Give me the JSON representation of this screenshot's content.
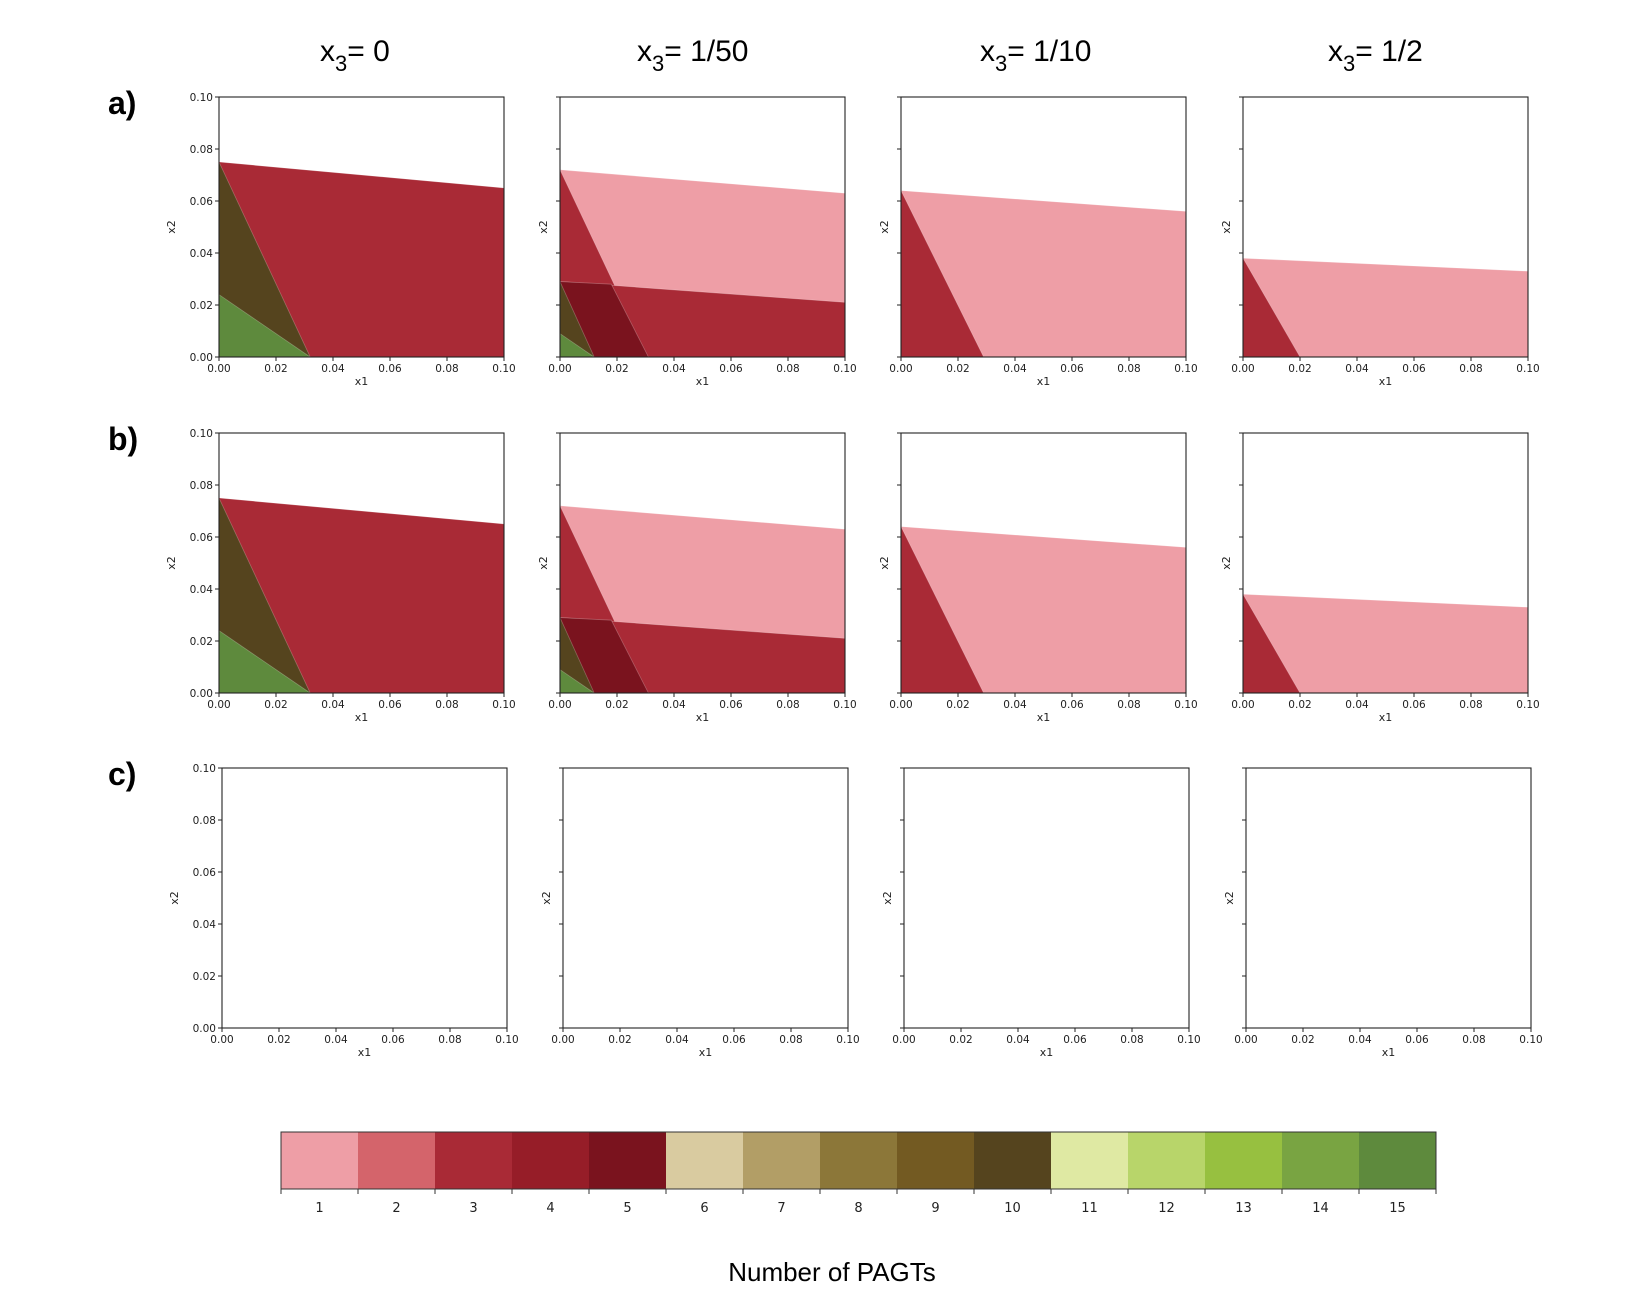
{
  "column_titles": [
    {
      "base": "x",
      "sub": "3",
      "rest": "= 0"
    },
    {
      "base": "x",
      "sub": "3",
      "rest": "= 1/50"
    },
    {
      "base": "x",
      "sub": "3",
      "rest": "= 1/10"
    },
    {
      "base": "x",
      "sub": "3",
      "rest": "= 1/2"
    }
  ],
  "row_labels": [
    "a)",
    "b)",
    "c)"
  ],
  "colorbar": {
    "label": "Number of PAGTs",
    "ticks": [
      "1",
      "2",
      "3",
      "4",
      "5",
      "6",
      "7",
      "8",
      "9",
      "10",
      "11",
      "12",
      "13",
      "14",
      "15"
    ],
    "colors": [
      "#ee9ea6",
      "#d4646b",
      "#a92a36",
      "#961d28",
      "#7a131e",
      "#d9cba0",
      "#b29e66",
      "#8c7739",
      "#735a22",
      "#55441e",
      "#dfe9a3",
      "#b8d56a",
      "#97c040",
      "#79a442",
      "#5e8a3d"
    ]
  },
  "chart_data": [
    {
      "type": "area",
      "panel": "a1",
      "row": "a)",
      "column": "x3= 0",
      "xlabel": "x1",
      "ylabel": "x2",
      "xlim": [
        0,
        0.1
      ],
      "ylim": [
        0,
        0.1
      ],
      "xticks": [
        "0.00",
        "0.02",
        "0.04",
        "0.06",
        "0.08",
        "0.10"
      ],
      "yticks": [
        "0.00",
        "0.02",
        "0.04",
        "0.06",
        "0.08",
        "0.10"
      ],
      "regions": [
        {
          "count": 3,
          "color": "#a92a36",
          "polygon": [
            [
              0,
              0
            ],
            [
              0.1,
              0
            ],
            [
              0.1,
              0.065
            ],
            [
              0,
              0.075
            ]
          ]
        },
        {
          "count": 10,
          "color": "#55441e",
          "polygon": [
            [
              0,
              0
            ],
            [
              0.032,
              0
            ],
            [
              0,
              0.075
            ]
          ]
        },
        {
          "count": 14,
          "color": "#5e8a3d",
          "polygon": [
            [
              0,
              0
            ],
            [
              0.032,
              0
            ],
            [
              0,
              0.024
            ]
          ]
        }
      ]
    },
    {
      "type": "area",
      "panel": "a2",
      "row": "a)",
      "column": "x3= 1/50",
      "xlabel": "x1",
      "ylabel": "x2",
      "xlim": [
        0,
        0.1
      ],
      "ylim": [
        0,
        0.1
      ],
      "xticks": [
        "0.00",
        "0.02",
        "0.04",
        "0.06",
        "0.08",
        "0.10"
      ],
      "yticks": [],
      "regions": [
        {
          "count": 1,
          "color": "#ee9ea6",
          "polygon": [
            [
              0,
              0
            ],
            [
              0.1,
              0
            ],
            [
              0.1,
              0.063
            ],
            [
              0,
              0.072
            ]
          ]
        },
        {
          "count": 3,
          "color": "#a92a36",
          "polygon": [
            [
              0,
              0
            ],
            [
              0.031,
              0
            ],
            [
              0,
              0.072
            ]
          ]
        },
        {
          "count": 3,
          "color": "#a92a36",
          "polygon": [
            [
              0,
              0
            ],
            [
              0.1,
              0
            ],
            [
              0.1,
              0.021
            ],
            [
              0,
              0.029
            ]
          ]
        },
        {
          "count": 5,
          "color": "#7a131e",
          "polygon": [
            [
              0,
              0
            ],
            [
              0.031,
              0
            ],
            [
              0.018,
              0.028
            ],
            [
              0,
              0.029
            ]
          ]
        },
        {
          "count": 10,
          "color": "#55441e",
          "polygon": [
            [
              0,
              0
            ],
            [
              0.012,
              0
            ],
            [
              0,
              0.029
            ]
          ]
        },
        {
          "count": 14,
          "color": "#5e8a3d",
          "polygon": [
            [
              0,
              0
            ],
            [
              0.012,
              0
            ],
            [
              0,
              0.009
            ]
          ]
        }
      ]
    },
    {
      "type": "area",
      "panel": "a3",
      "row": "a)",
      "column": "x3= 1/10",
      "xlabel": "x1",
      "ylabel": "x2",
      "xlim": [
        0,
        0.1
      ],
      "ylim": [
        0,
        0.1
      ],
      "xticks": [
        "0.00",
        "0.02",
        "0.04",
        "0.06",
        "0.08",
        "0.10"
      ],
      "yticks": [],
      "regions": [
        {
          "count": 1,
          "color": "#ee9ea6",
          "polygon": [
            [
              0,
              0
            ],
            [
              0.1,
              0
            ],
            [
              0.1,
              0.056
            ],
            [
              0,
              0.064
            ]
          ]
        },
        {
          "count": 3,
          "color": "#a92a36",
          "polygon": [
            [
              0,
              0
            ],
            [
              0.029,
              0
            ],
            [
              0,
              0.064
            ]
          ]
        }
      ]
    },
    {
      "type": "area",
      "panel": "a4",
      "row": "a)",
      "column": "x3= 1/2",
      "xlabel": "x1",
      "ylabel": "x2",
      "xlim": [
        0,
        0.1
      ],
      "ylim": [
        0,
        0.1
      ],
      "xticks": [
        "0.00",
        "0.02",
        "0.04",
        "0.06",
        "0.08",
        "0.10"
      ],
      "yticks": [],
      "regions": [
        {
          "count": 1,
          "color": "#ee9ea6",
          "polygon": [
            [
              0,
              0
            ],
            [
              0.1,
              0
            ],
            [
              0.1,
              0.033
            ],
            [
              0,
              0.038
            ]
          ]
        },
        {
          "count": 3,
          "color": "#a92a36",
          "polygon": [
            [
              0,
              0
            ],
            [
              0.02,
              0
            ],
            [
              0,
              0.038
            ]
          ]
        }
      ]
    },
    {
      "type": "area",
      "panel": "b1",
      "row": "b)",
      "column": "x3= 0",
      "xlabel": "x1",
      "ylabel": "x2",
      "xlim": [
        0,
        0.1
      ],
      "ylim": [
        0,
        0.1
      ],
      "xticks": [
        "0.00",
        "0.02",
        "0.04",
        "0.06",
        "0.08",
        "0.10"
      ],
      "yticks": [
        "0.00",
        "0.02",
        "0.04",
        "0.06",
        "0.08",
        "0.10"
      ],
      "regions": [
        {
          "count": 3,
          "color": "#a92a36",
          "polygon": [
            [
              0,
              0
            ],
            [
              0.1,
              0
            ],
            [
              0.1,
              0.065
            ],
            [
              0,
              0.075
            ]
          ]
        },
        {
          "count": 10,
          "color": "#55441e",
          "polygon": [
            [
              0,
              0
            ],
            [
              0.032,
              0
            ],
            [
              0,
              0.075
            ]
          ]
        },
        {
          "count": 14,
          "color": "#5e8a3d",
          "polygon": [
            [
              0,
              0
            ],
            [
              0.032,
              0
            ],
            [
              0,
              0.024
            ]
          ]
        }
      ]
    },
    {
      "type": "area",
      "panel": "b2",
      "row": "b)",
      "column": "x3= 1/50",
      "xlabel": "x1",
      "ylabel": "x2",
      "xlim": [
        0,
        0.1
      ],
      "ylim": [
        0,
        0.1
      ],
      "xticks": [
        "0.00",
        "0.02",
        "0.04",
        "0.06",
        "0.08",
        "0.10"
      ],
      "yticks": [],
      "regions": [
        {
          "count": 1,
          "color": "#ee9ea6",
          "polygon": [
            [
              0,
              0
            ],
            [
              0.1,
              0
            ],
            [
              0.1,
              0.063
            ],
            [
              0,
              0.072
            ]
          ]
        },
        {
          "count": 3,
          "color": "#a92a36",
          "polygon": [
            [
              0,
              0
            ],
            [
              0.031,
              0
            ],
            [
              0,
              0.072
            ]
          ]
        },
        {
          "count": 3,
          "color": "#a92a36",
          "polygon": [
            [
              0,
              0
            ],
            [
              0.1,
              0
            ],
            [
              0.1,
              0.021
            ],
            [
              0,
              0.029
            ]
          ]
        },
        {
          "count": 5,
          "color": "#7a131e",
          "polygon": [
            [
              0,
              0
            ],
            [
              0.031,
              0
            ],
            [
              0.018,
              0.028
            ],
            [
              0,
              0.029
            ]
          ]
        },
        {
          "count": 10,
          "color": "#55441e",
          "polygon": [
            [
              0,
              0
            ],
            [
              0.012,
              0
            ],
            [
              0,
              0.029
            ]
          ]
        },
        {
          "count": 14,
          "color": "#5e8a3d",
          "polygon": [
            [
              0,
              0
            ],
            [
              0.012,
              0
            ],
            [
              0,
              0.009
            ]
          ]
        }
      ]
    },
    {
      "type": "area",
      "panel": "b3",
      "row": "b)",
      "column": "x3= 1/10",
      "xlabel": "x1",
      "ylabel": "x2",
      "xlim": [
        0,
        0.1
      ],
      "ylim": [
        0,
        0.1
      ],
      "xticks": [
        "0.00",
        "0.02",
        "0.04",
        "0.06",
        "0.08",
        "0.10"
      ],
      "yticks": [],
      "regions": [
        {
          "count": 1,
          "color": "#ee9ea6",
          "polygon": [
            [
              0,
              0
            ],
            [
              0.1,
              0
            ],
            [
              0.1,
              0.056
            ],
            [
              0,
              0.064
            ]
          ]
        },
        {
          "count": 3,
          "color": "#a92a36",
          "polygon": [
            [
              0,
              0
            ],
            [
              0.029,
              0
            ],
            [
              0,
              0.064
            ]
          ]
        }
      ]
    },
    {
      "type": "area",
      "panel": "b4",
      "row": "b)",
      "column": "x3= 1/2",
      "xlabel": "x1",
      "ylabel": "x2",
      "xlim": [
        0,
        0.1
      ],
      "ylim": [
        0,
        0.1
      ],
      "xticks": [
        "0.00",
        "0.02",
        "0.04",
        "0.06",
        "0.08",
        "0.10"
      ],
      "yticks": [],
      "regions": [
        {
          "count": 1,
          "color": "#ee9ea6",
          "polygon": [
            [
              0,
              0
            ],
            [
              0.1,
              0
            ],
            [
              0.1,
              0.033
            ],
            [
              0,
              0.038
            ]
          ]
        },
        {
          "count": 3,
          "color": "#a92a36",
          "polygon": [
            [
              0,
              0
            ],
            [
              0.02,
              0
            ],
            [
              0,
              0.038
            ]
          ]
        }
      ]
    },
    {
      "type": "area",
      "panel": "c1",
      "row": "c)",
      "column": "x3= 0",
      "xlabel": "x1",
      "ylabel": "x2",
      "xlim": [
        0,
        0.1
      ],
      "ylim": [
        0,
        0.1
      ],
      "xticks": [
        "0.00",
        "0.02",
        "0.04",
        "0.06",
        "0.08",
        "0.10"
      ],
      "yticks": [
        "0.00",
        "0.02",
        "0.04",
        "0.06",
        "0.08",
        "0.10"
      ],
      "regions": []
    },
    {
      "type": "area",
      "panel": "c2",
      "row": "c)",
      "column": "x3= 1/50",
      "xlabel": "x1",
      "ylabel": "x2",
      "xlim": [
        0,
        0.1
      ],
      "ylim": [
        0,
        0.1
      ],
      "xticks": [
        "0.00",
        "0.02",
        "0.04",
        "0.06",
        "0.08",
        "0.10"
      ],
      "yticks": [],
      "regions": []
    },
    {
      "type": "area",
      "panel": "c3",
      "row": "c)",
      "column": "x3= 1/10",
      "xlabel": "x1",
      "ylabel": "x2",
      "xlim": [
        0,
        0.1
      ],
      "ylim": [
        0,
        0.1
      ],
      "xticks": [
        "0.00",
        "0.02",
        "0.04",
        "0.06",
        "0.08",
        "0.10"
      ],
      "yticks": [],
      "regions": []
    },
    {
      "type": "area",
      "panel": "c4",
      "row": "c)",
      "column": "x3= 1/2",
      "xlabel": "x1",
      "ylabel": "x2",
      "xlim": [
        0,
        0.1
      ],
      "ylim": [
        0,
        0.1
      ],
      "xticks": [
        "0.00",
        "0.02",
        "0.04",
        "0.06",
        "0.08",
        "0.10"
      ],
      "yticks": [],
      "regions": []
    }
  ]
}
